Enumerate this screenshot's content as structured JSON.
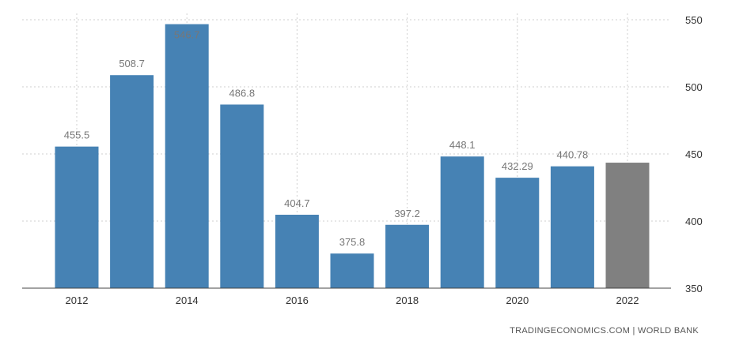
{
  "chart_data": {
    "type": "bar",
    "categories": [
      "2012",
      "2013",
      "2014",
      "2015",
      "2016",
      "2017",
      "2018",
      "2019",
      "2020",
      "2021",
      "2022"
    ],
    "values": [
      455.5,
      508.7,
      546.7,
      486.8,
      404.7,
      375.8,
      397.2,
      448.1,
      432.29,
      440.78,
      443.5
    ],
    "data_labels": [
      "455.5",
      "508.7",
      "546.7",
      "486.8",
      "404.7",
      "375.8",
      "397.2",
      "448.1",
      "432.29",
      "440.78",
      ""
    ],
    "x_tick_labels": [
      "2012",
      "",
      "2014",
      "",
      "2016",
      "",
      "2018",
      "",
      "2020",
      "",
      "2022"
    ],
    "y_ticks": [
      "350",
      "400",
      "450",
      "500",
      "550"
    ],
    "ylim": [
      350,
      550
    ],
    "y_axis_side": "right",
    "grid": true,
    "bar_color": "#4682b4",
    "forecast_bar_color": "#808080",
    "forecast_index": 10,
    "source": "TRADINGECONOMICS.COM | WORLD BANK"
  }
}
